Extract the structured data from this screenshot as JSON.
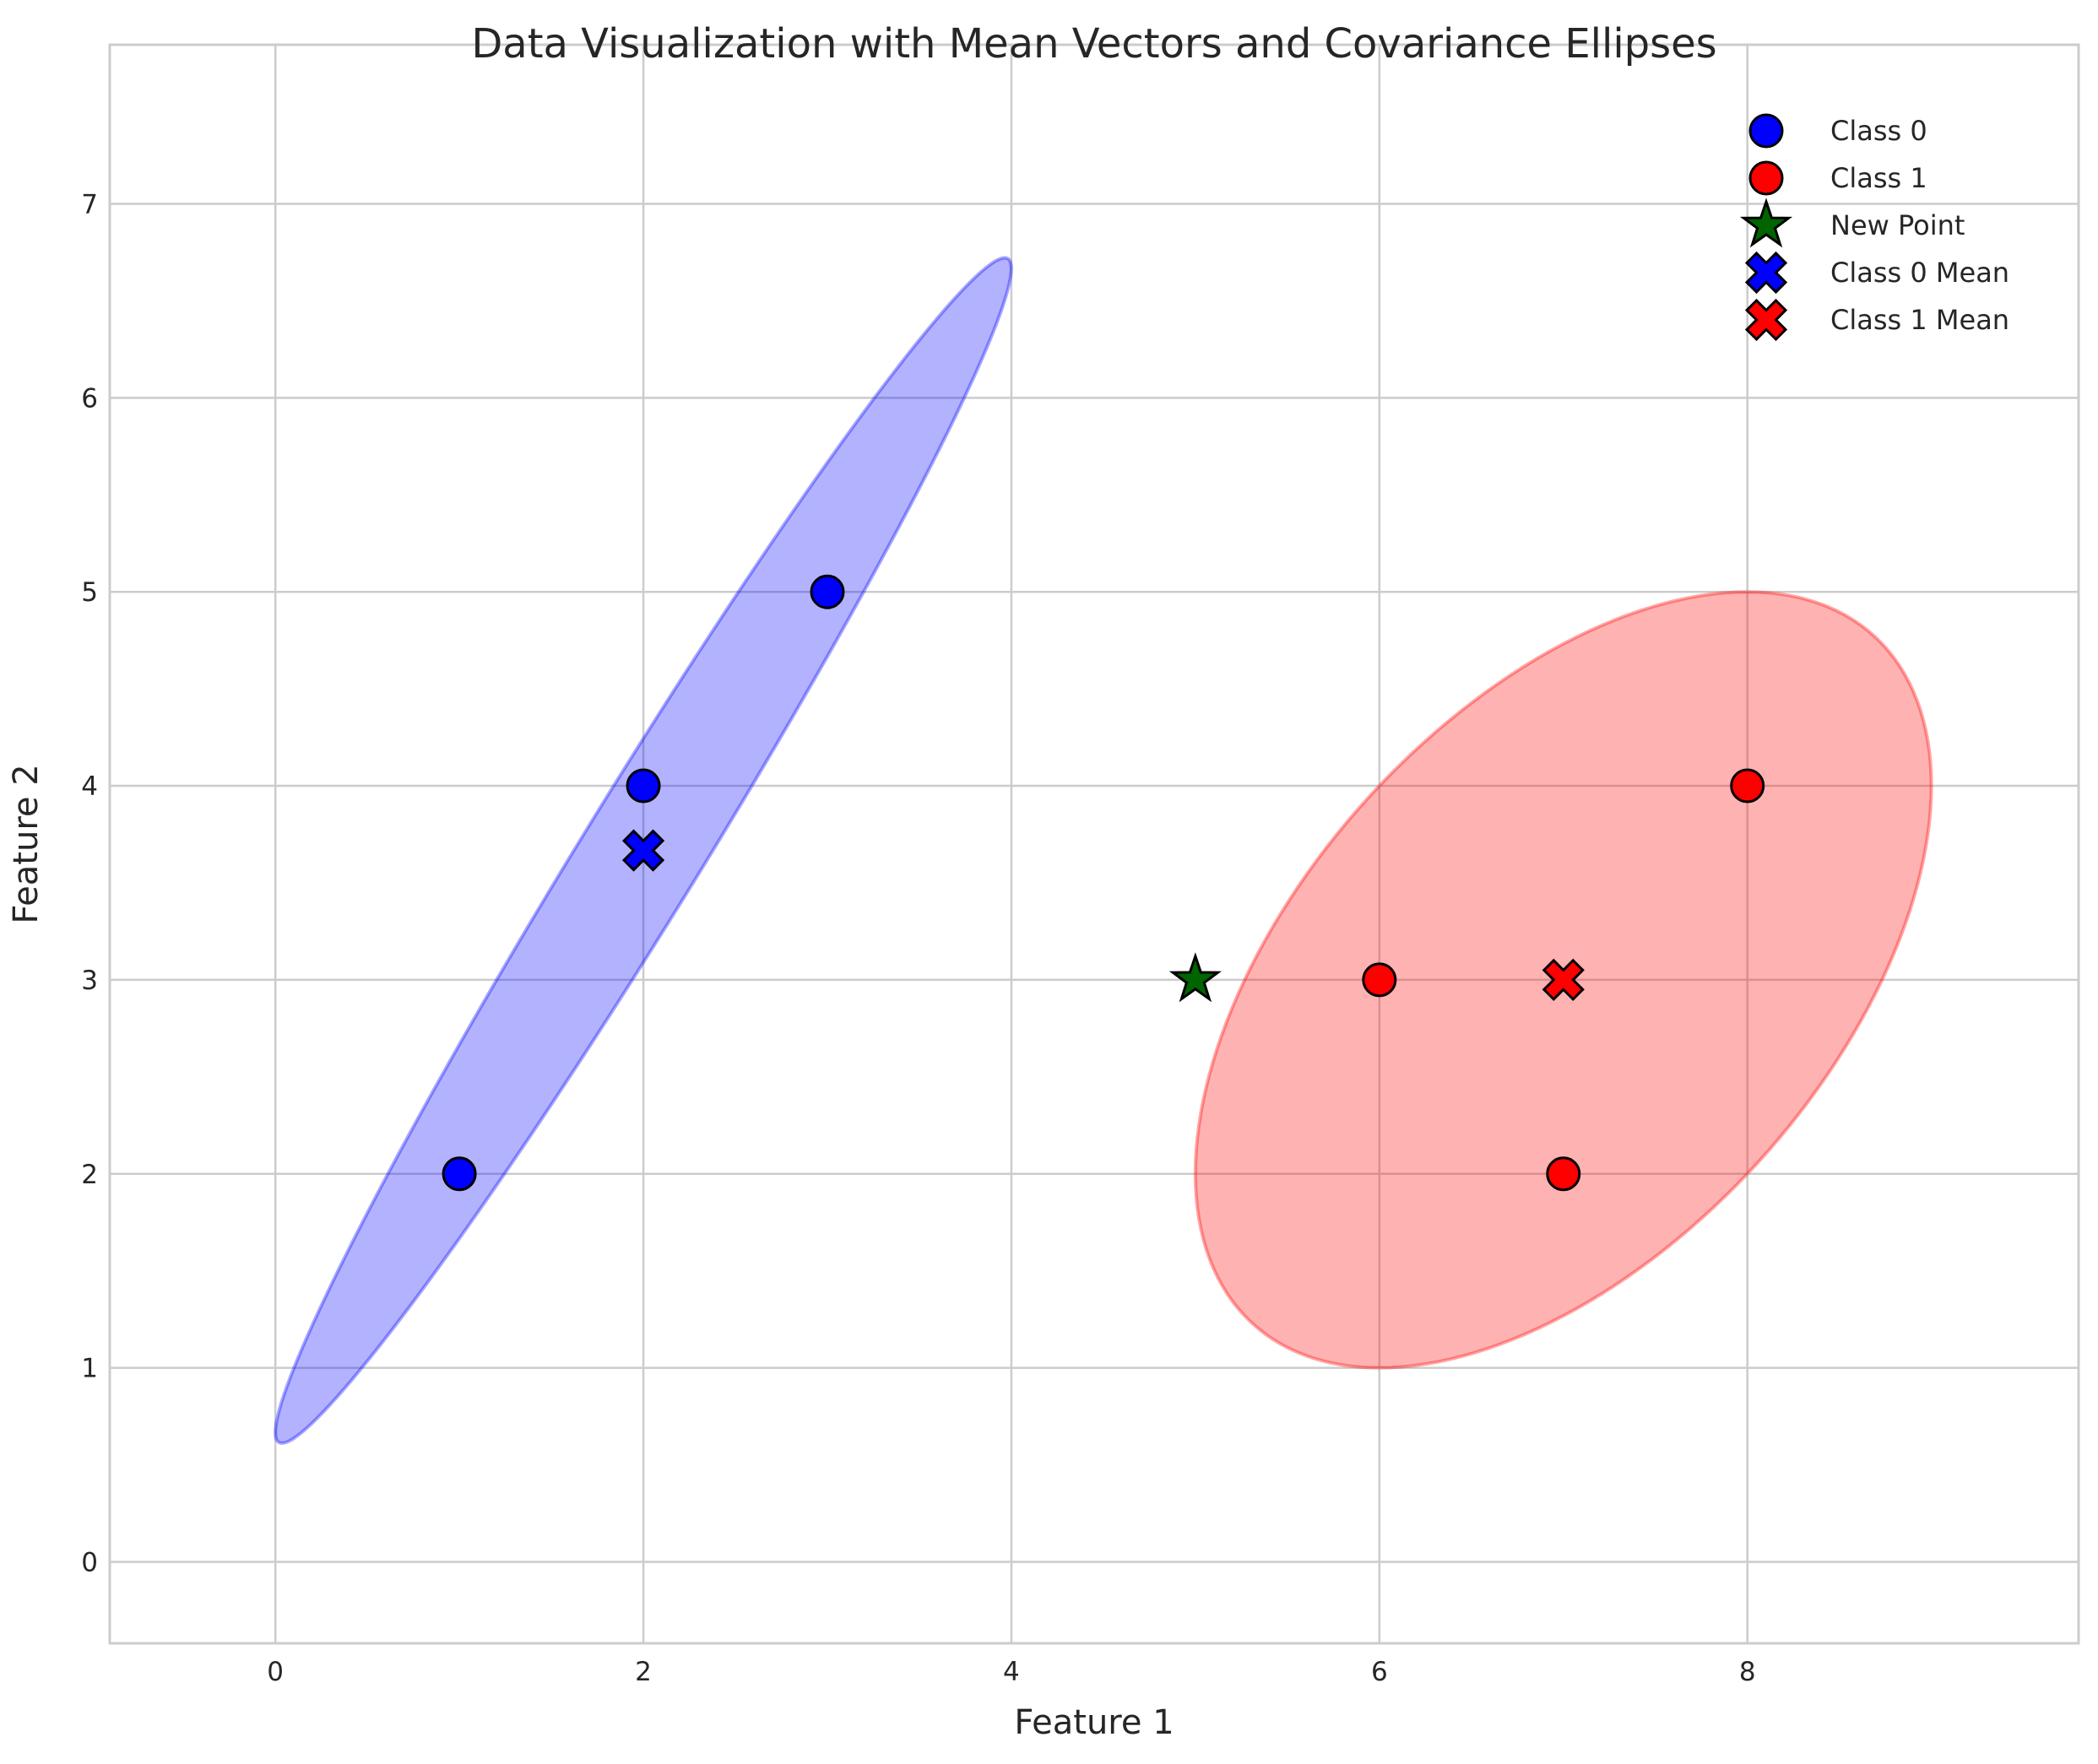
{
  "chart_data": {
    "type": "scatter",
    "title": "Data Visualization with Mean Vectors and Covariance Ellipses",
    "xlabel": "Feature 1",
    "ylabel": "Feature 2",
    "xlim": [
      -0.9,
      9.8
    ],
    "ylim": [
      -0.42,
      7.82
    ],
    "xticks": [
      0,
      2,
      4,
      6,
      8
    ],
    "yticks": [
      0,
      1,
      2,
      3,
      4,
      5,
      6,
      7
    ],
    "grid": true,
    "legend_position": "top-right",
    "series": [
      {
        "name": "Class 0",
        "marker": "circle",
        "color": "#0000ff",
        "points": [
          {
            "x": 1,
            "y": 2
          },
          {
            "x": 2,
            "y": 4
          },
          {
            "x": 3,
            "y": 5
          }
        ]
      },
      {
        "name": "Class 1",
        "marker": "circle",
        "color": "#ff0000",
        "points": [
          {
            "x": 6,
            "y": 3
          },
          {
            "x": 7,
            "y": 2
          },
          {
            "x": 8,
            "y": 4
          }
        ]
      },
      {
        "name": "New Point",
        "marker": "star",
        "color": "#006400",
        "points": [
          {
            "x": 5,
            "y": 3
          }
        ]
      },
      {
        "name": "Class 0 Mean",
        "marker": "x",
        "color": "#0000ff",
        "points": [
          {
            "x": 2,
            "y": 3.6667
          }
        ]
      },
      {
        "name": "Class 1 Mean",
        "marker": "x",
        "color": "#ff0000",
        "points": [
          {
            "x": 7,
            "y": 3
          }
        ]
      }
    ],
    "ellipses": [
      {
        "class": "Class 0",
        "color": "#0000ff",
        "center": [
          2,
          3.6667
        ],
        "covariance": [
          [
            1,
            1.5
          ],
          [
            1.5,
            2.3333
          ]
        ]
      },
      {
        "class": "Class 1",
        "color": "#ff0000",
        "center": [
          7,
          3
        ],
        "covariance": [
          [
            1,
            0.5
          ],
          [
            0.5,
            1
          ]
        ]
      }
    ]
  }
}
